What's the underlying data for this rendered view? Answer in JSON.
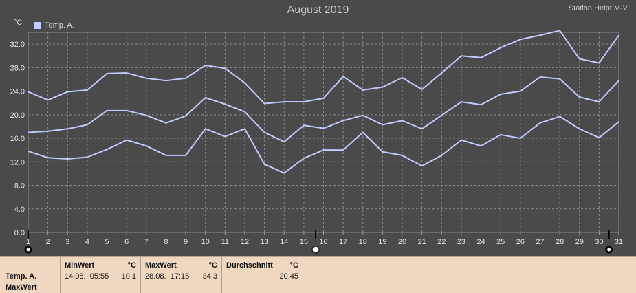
{
  "header": {
    "title": "August 2019",
    "station": "Station Helpt M-V",
    "unit": "°C"
  },
  "legend": {
    "label": "Temp. A.",
    "color": "#c0ccff"
  },
  "chart_data": {
    "type": "line",
    "x": [
      1,
      2,
      3,
      4,
      5,
      6,
      7,
      8,
      9,
      10,
      11,
      12,
      13,
      14,
      15,
      16,
      17,
      18,
      19,
      20,
      21,
      22,
      23,
      24,
      25,
      26,
      27,
      28,
      29,
      30,
      31
    ],
    "xlim": [
      1,
      31
    ],
    "ylim": [
      0,
      34
    ],
    "yticks": [
      "0.0",
      "4.0",
      "8.0",
      "12.0",
      "16.0",
      "20.0",
      "24.0",
      "28.0",
      "32.0"
    ],
    "grid": true,
    "series": [
      {
        "values": [
          23.9,
          22.5,
          23.9,
          24.2,
          27.0,
          27.1,
          26.2,
          25.8,
          26.2,
          28.4,
          27.9,
          25.4,
          21.9,
          22.2,
          22.2,
          22.8,
          26.5,
          24.2,
          24.7,
          26.3,
          24.3,
          27.1,
          30.0,
          29.7,
          31.4,
          32.8,
          33.5,
          34.3,
          29.5,
          28.8,
          33.5
        ]
      },
      {
        "values": [
          17.0,
          17.2,
          17.6,
          18.3,
          20.7,
          20.7,
          19.9,
          18.6,
          19.8,
          22.9,
          21.8,
          20.5,
          17.0,
          15.4,
          18.2,
          17.7,
          19.0,
          19.9,
          18.3,
          19.0,
          17.6,
          19.9,
          22.2,
          21.7,
          23.5,
          24.0,
          26.4,
          26.1,
          23.0,
          22.2,
          25.8
        ]
      },
      {
        "values": [
          13.8,
          12.7,
          12.5,
          12.8,
          14.1,
          15.7,
          14.7,
          13.1,
          13.1,
          17.6,
          16.3,
          17.6,
          11.6,
          10.1,
          12.6,
          14.0,
          14.0,
          17.0,
          13.7,
          13.1,
          11.3,
          13.1,
          15.7,
          14.7,
          16.6,
          16.0,
          18.6,
          19.7,
          17.6,
          16.1,
          18.8
        ]
      }
    ]
  },
  "markers": [
    1,
    15.6,
    30.5
  ],
  "stats": {
    "row_label_1": "Temp. A.",
    "row_label_2": "MaxWert",
    "min": {
      "header": "MinWert",
      "unit": "°C",
      "datetime": "14.08.  05:55",
      "value": "10.1"
    },
    "max": {
      "header": "MaxWert",
      "unit": "°C",
      "datetime": "28.08.  17:15",
      "value": "34.3"
    },
    "avg": {
      "header": "Durchschnitt",
      "unit": "°C",
      "value": "20.45"
    }
  }
}
